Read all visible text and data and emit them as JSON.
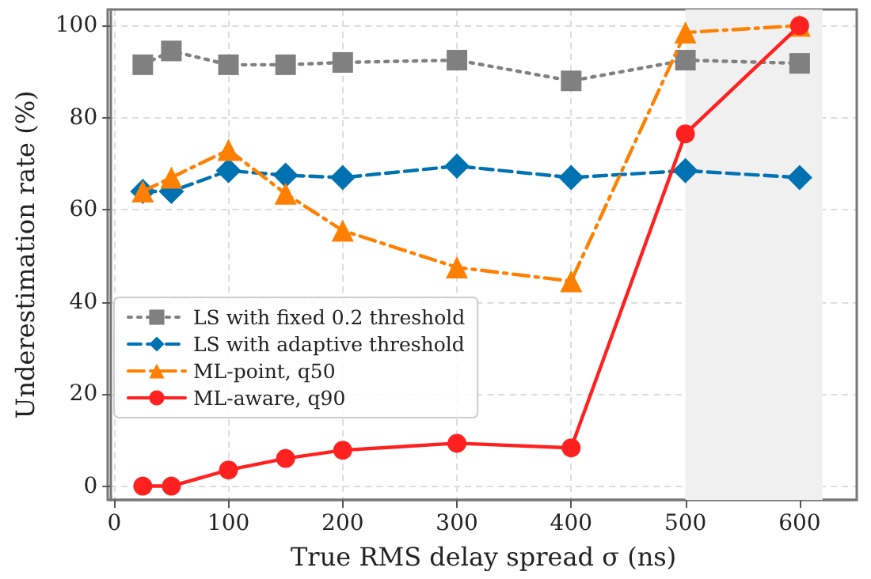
{
  "chart_data": {
    "type": "line",
    "xlabel": "True RMS delay spread σ (ns)",
    "ylabel": "Underestimation rate (%)",
    "x": [
      25,
      50,
      100,
      150,
      200,
      300,
      400,
      500,
      600
    ],
    "series": [
      {
        "name": "LS with fixed 0.2 threshold",
        "color": "#808080",
        "marker": "square",
        "line_style": "dotted",
        "values": [
          91.5,
          94.5,
          91.5,
          91.5,
          92,
          92.5,
          88,
          92.5,
          91.8
        ]
      },
      {
        "name": "LS with adaptive threshold",
        "color": "#0072b2",
        "marker": "diamond",
        "line_style": "dashed",
        "values": [
          64,
          64,
          68.5,
          67.5,
          67,
          69.5,
          67,
          68.5,
          67
        ]
      },
      {
        "name": "ML-point, q50",
        "color": "#ff8000",
        "marker": "triangle",
        "line_style": "dashdot",
        "values": [
          64,
          67,
          73,
          63.5,
          55.5,
          47.5,
          44.5,
          98.5,
          100
        ]
      },
      {
        "name": "ML-aware, q90",
        "color": "#ff2020",
        "marker": "circle",
        "line_style": "solid",
        "values": [
          0,
          0,
          3.5,
          6,
          7.8,
          9.3,
          8.3,
          76.5,
          100
        ]
      }
    ],
    "xlim": [
      -3.5,
      650
    ],
    "xticks": [
      0,
      100,
      200,
      300,
      400,
      500,
      600
    ],
    "ylim": [
      -3,
      103.5
    ],
    "yticks": [
      0,
      20,
      40,
      60,
      80,
      100
    ],
    "bands": [
      {
        "axis": "x",
        "from": 500,
        "to": 620,
        "color": "#f0f0f0"
      }
    ],
    "grid": true,
    "legend": "left"
  }
}
